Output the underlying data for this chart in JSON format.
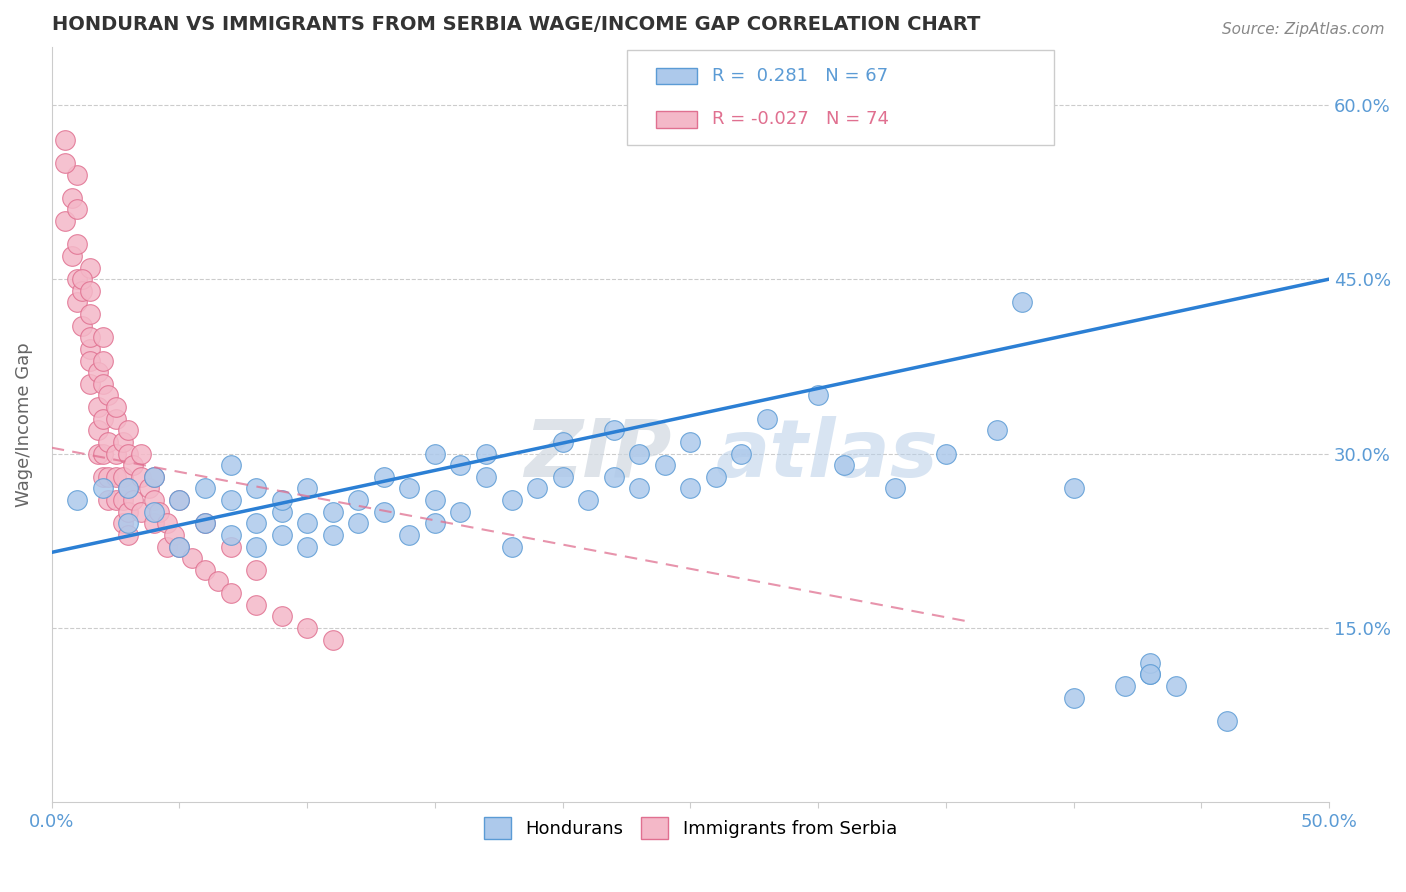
{
  "title": "HONDURAN VS IMMIGRANTS FROM SERBIA WAGE/INCOME GAP CORRELATION CHART",
  "source": "Source: ZipAtlas.com",
  "ylabel": "Wage/Income Gap",
  "xlim": [
    0.0,
    0.5
  ],
  "ylim": [
    0.0,
    0.65
  ],
  "yticks": [
    0.15,
    0.3,
    0.45,
    0.6
  ],
  "ytick_labels": [
    "15.0%",
    "30.0%",
    "45.0%",
    "60.0%"
  ],
  "xtick_positions": [
    0.0,
    0.05,
    0.1,
    0.15,
    0.2,
    0.25,
    0.3,
    0.35,
    0.4,
    0.45,
    0.5
  ],
  "xtick_labels": [
    "0.0%",
    "",
    "",
    "",
    "",
    "",
    "",
    "",
    "",
    "",
    "50.0%"
  ],
  "blue_color": "#adc9eb",
  "blue_edge_color": "#5b9bd5",
  "pink_color": "#f4b8c8",
  "pink_edge_color": "#e07090",
  "blue_line_color": "#2b7fd4",
  "pink_line_color": "#e07090",
  "watermark_zip": "ZIP",
  "watermark_atlas": "atlas",
  "legend_r1_val": "0.281",
  "legend_r2_val": "-0.027",
  "legend_n1": "67",
  "legend_n2": "74",
  "blue_line_x0": 0.0,
  "blue_line_y0": 0.215,
  "blue_line_x1": 0.5,
  "blue_line_y1": 0.45,
  "pink_line_x0": 0.0,
  "pink_line_y0": 0.305,
  "pink_line_x1": 0.36,
  "pink_line_y1": 0.155,
  "blue_dots": [
    [
      0.01,
      0.26
    ],
    [
      0.02,
      0.27
    ],
    [
      0.03,
      0.24
    ],
    [
      0.03,
      0.27
    ],
    [
      0.04,
      0.25
    ],
    [
      0.04,
      0.28
    ],
    [
      0.05,
      0.22
    ],
    [
      0.05,
      0.26
    ],
    [
      0.06,
      0.24
    ],
    [
      0.06,
      0.27
    ],
    [
      0.07,
      0.23
    ],
    [
      0.07,
      0.26
    ],
    [
      0.07,
      0.29
    ],
    [
      0.08,
      0.24
    ],
    [
      0.08,
      0.27
    ],
    [
      0.08,
      0.22
    ],
    [
      0.09,
      0.25
    ],
    [
      0.09,
      0.23
    ],
    [
      0.09,
      0.26
    ],
    [
      0.1,
      0.24
    ],
    [
      0.1,
      0.27
    ],
    [
      0.1,
      0.22
    ],
    [
      0.11,
      0.25
    ],
    [
      0.11,
      0.23
    ],
    [
      0.12,
      0.26
    ],
    [
      0.12,
      0.24
    ],
    [
      0.13,
      0.28
    ],
    [
      0.13,
      0.25
    ],
    [
      0.14,
      0.27
    ],
    [
      0.14,
      0.23
    ],
    [
      0.15,
      0.3
    ],
    [
      0.15,
      0.26
    ],
    [
      0.15,
      0.24
    ],
    [
      0.16,
      0.29
    ],
    [
      0.16,
      0.25
    ],
    [
      0.17,
      0.28
    ],
    [
      0.17,
      0.3
    ],
    [
      0.18,
      0.26
    ],
    [
      0.18,
      0.22
    ],
    [
      0.19,
      0.27
    ],
    [
      0.2,
      0.28
    ],
    [
      0.2,
      0.31
    ],
    [
      0.21,
      0.26
    ],
    [
      0.22,
      0.28
    ],
    [
      0.22,
      0.32
    ],
    [
      0.23,
      0.3
    ],
    [
      0.23,
      0.27
    ],
    [
      0.24,
      0.29
    ],
    [
      0.25,
      0.31
    ],
    [
      0.25,
      0.27
    ],
    [
      0.26,
      0.28
    ],
    [
      0.27,
      0.3
    ],
    [
      0.28,
      0.33
    ],
    [
      0.3,
      0.35
    ],
    [
      0.31,
      0.29
    ],
    [
      0.33,
      0.27
    ],
    [
      0.35,
      0.3
    ],
    [
      0.37,
      0.32
    ],
    [
      0.38,
      0.43
    ],
    [
      0.4,
      0.09
    ],
    [
      0.4,
      0.27
    ],
    [
      0.42,
      0.1
    ],
    [
      0.43,
      0.11
    ],
    [
      0.43,
      0.12
    ],
    [
      0.43,
      0.11
    ],
    [
      0.44,
      0.1
    ],
    [
      0.46,
      0.07
    ]
  ],
  "pink_dots": [
    [
      0.005,
      0.57
    ],
    [
      0.005,
      0.5
    ],
    [
      0.008,
      0.52
    ],
    [
      0.008,
      0.47
    ],
    [
      0.01,
      0.48
    ],
    [
      0.01,
      0.45
    ],
    [
      0.01,
      0.43
    ],
    [
      0.01,
      0.54
    ],
    [
      0.012,
      0.44
    ],
    [
      0.012,
      0.41
    ],
    [
      0.015,
      0.42
    ],
    [
      0.015,
      0.39
    ],
    [
      0.015,
      0.46
    ],
    [
      0.015,
      0.36
    ],
    [
      0.015,
      0.38
    ],
    [
      0.015,
      0.4
    ],
    [
      0.018,
      0.37
    ],
    [
      0.018,
      0.34
    ],
    [
      0.018,
      0.32
    ],
    [
      0.018,
      0.3
    ],
    [
      0.02,
      0.36
    ],
    [
      0.02,
      0.33
    ],
    [
      0.02,
      0.3
    ],
    [
      0.02,
      0.28
    ],
    [
      0.022,
      0.35
    ],
    [
      0.022,
      0.31
    ],
    [
      0.022,
      0.28
    ],
    [
      0.022,
      0.26
    ],
    [
      0.025,
      0.33
    ],
    [
      0.025,
      0.3
    ],
    [
      0.025,
      0.28
    ],
    [
      0.025,
      0.26
    ],
    [
      0.028,
      0.31
    ],
    [
      0.028,
      0.28
    ],
    [
      0.028,
      0.26
    ],
    [
      0.028,
      0.24
    ],
    [
      0.03,
      0.3
    ],
    [
      0.03,
      0.27
    ],
    [
      0.03,
      0.25
    ],
    [
      0.03,
      0.23
    ],
    [
      0.032,
      0.29
    ],
    [
      0.032,
      0.26
    ],
    [
      0.035,
      0.28
    ],
    [
      0.035,
      0.25
    ],
    [
      0.038,
      0.27
    ],
    [
      0.04,
      0.26
    ],
    [
      0.04,
      0.24
    ],
    [
      0.042,
      0.25
    ],
    [
      0.045,
      0.24
    ],
    [
      0.045,
      0.22
    ],
    [
      0.048,
      0.23
    ],
    [
      0.05,
      0.22
    ],
    [
      0.055,
      0.21
    ],
    [
      0.06,
      0.2
    ],
    [
      0.065,
      0.19
    ],
    [
      0.07,
      0.18
    ],
    [
      0.08,
      0.17
    ],
    [
      0.09,
      0.16
    ],
    [
      0.1,
      0.15
    ],
    [
      0.11,
      0.14
    ],
    [
      0.012,
      0.45
    ],
    [
      0.02,
      0.38
    ],
    [
      0.025,
      0.34
    ],
    [
      0.03,
      0.32
    ],
    [
      0.035,
      0.3
    ],
    [
      0.04,
      0.28
    ],
    [
      0.05,
      0.26
    ],
    [
      0.06,
      0.24
    ],
    [
      0.07,
      0.22
    ],
    [
      0.08,
      0.2
    ],
    [
      0.005,
      0.55
    ],
    [
      0.01,
      0.51
    ],
    [
      0.015,
      0.44
    ],
    [
      0.02,
      0.4
    ]
  ]
}
